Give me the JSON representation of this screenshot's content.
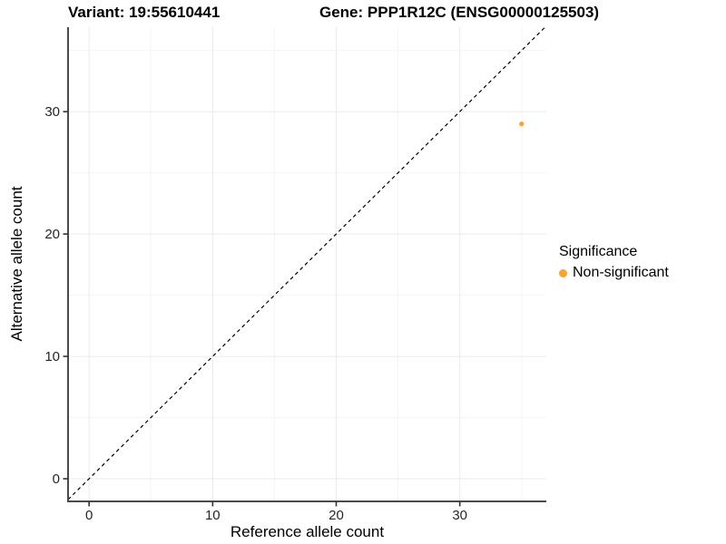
{
  "header": {
    "variant_title": "Variant: 19:55610441",
    "gene_title": "Gene: PPP1R12C (ENSG00000125503)"
  },
  "legend": {
    "title": "Significance",
    "items": [
      {
        "label": "Non-significant",
        "color": "#F9A232",
        "marker": "circle"
      }
    ]
  },
  "chart_data": {
    "type": "scatter",
    "xlabel": "Reference allele count",
    "ylabel": "Alternative allele count",
    "xlim": [
      -1.7,
      37.0
    ],
    "ylim": [
      -1.85,
      36.9
    ],
    "xticks": [
      0,
      10,
      20,
      30
    ],
    "yticks": [
      0,
      10,
      20,
      30
    ],
    "xminor": [
      5,
      15,
      25,
      35
    ],
    "yminor": [
      5,
      15,
      25,
      35
    ],
    "grid": "major+minor",
    "identity_line": {
      "slope": 1,
      "intercept": 0,
      "style": "dashed",
      "color": "#000000"
    },
    "series": [
      {
        "name": "Non-significant",
        "color": "#F9A232",
        "points": [
          {
            "x": 35,
            "y": 29
          }
        ]
      }
    ],
    "legend_position": "right",
    "colors": {
      "grid_major": "#ebebeb",
      "grid_minor": "#f5f5f5",
      "axis_line": "#4a4a4a",
      "tick_mark": "#333333",
      "tick_text": "#262626",
      "point": "#F9A232"
    }
  }
}
